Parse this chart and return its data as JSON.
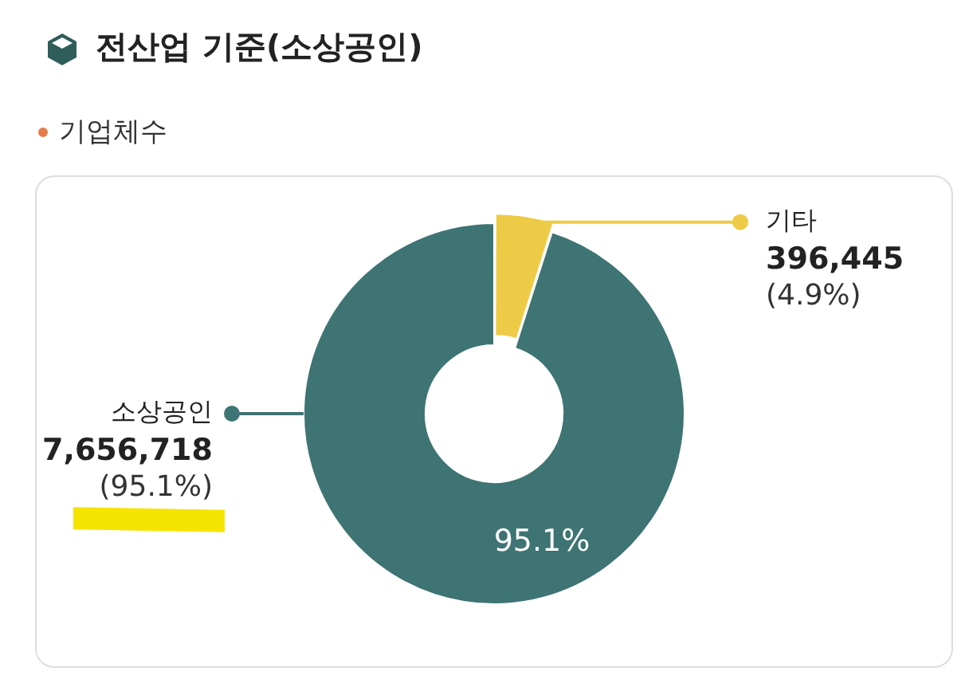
{
  "chart_data": {
    "type": "donut",
    "title": "전산업 기준(소상공인)",
    "subtitle": "기업체수",
    "categories": [
      "기타",
      "소상공인"
    ],
    "values": [
      396445,
      7656718
    ],
    "colors": [
      "#eecb46",
      "#3e7473"
    ],
    "value_labels": [
      "396,445",
      "7,656,718"
    ],
    "annotations": [
      "(4.9%)",
      "(95.1%)",
      "95.1%"
    ]
  }
}
